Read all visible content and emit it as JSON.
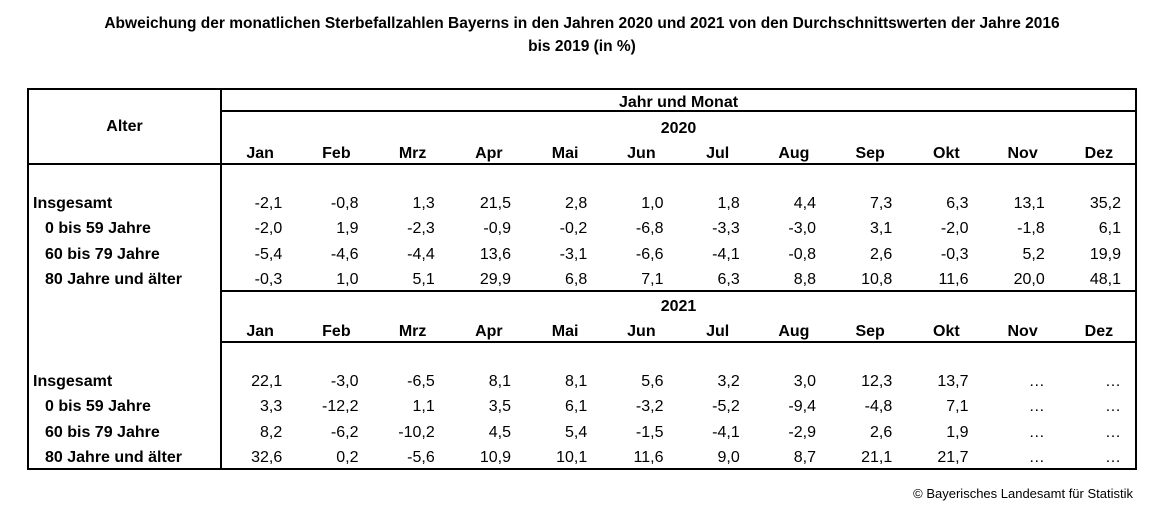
{
  "title": {
    "line1": "Abweichung der monatlichen Sterbefallzahlen Bayerns in den Jahren 2020 und 2021 von den Durchschnittswerten der Jahre 2016",
    "line2": "bis 2019 (in %)"
  },
  "table": {
    "alter_header": "Alter",
    "group_header": "Jahr und Monat",
    "months": [
      "Jan",
      "Feb",
      "Mrz",
      "Apr",
      "Mai",
      "Jun",
      "Jul",
      "Aug",
      "Sep",
      "Okt",
      "Nov",
      "Dez"
    ],
    "sections": [
      {
        "year": "2020",
        "rows": [
          {
            "label": "Insgesamt",
            "values": [
              "-2,1",
              "-0,8",
              "1,3",
              "21,5",
              "2,8",
              "1,0",
              "1,8",
              "4,4",
              "7,3",
              "6,3",
              "13,1",
              "35,2"
            ]
          },
          {
            "label": "0 bis 59 Jahre",
            "values": [
              "-2,0",
              "1,9",
              "-2,3",
              "-0,9",
              "-0,2",
              "-6,8",
              "-3,3",
              "-3,0",
              "3,1",
              "-2,0",
              "-1,8",
              "6,1"
            ]
          },
          {
            "label": "60 bis 79 Jahre",
            "values": [
              "-5,4",
              "-4,6",
              "-4,4",
              "13,6",
              "-3,1",
              "-6,6",
              "-4,1",
              "-0,8",
              "2,6",
              "-0,3",
              "5,2",
              "19,9"
            ]
          },
          {
            "label": "80 Jahre und älter",
            "values": [
              "-0,3",
              "1,0",
              "5,1",
              "29,9",
              "6,8",
              "7,1",
              "6,3",
              "8,8",
              "10,8",
              "11,6",
              "20,0",
              "48,1"
            ]
          }
        ]
      },
      {
        "year": "2021",
        "rows": [
          {
            "label": "Insgesamt",
            "values": [
              "22,1",
              "-3,0",
              "-6,5",
              "8,1",
              "8,1",
              "5,6",
              "3,2",
              "3,0",
              "12,3",
              "13,7",
              "…",
              "…"
            ]
          },
          {
            "label": "0 bis 59 Jahre",
            "values": [
              "3,3",
              "-12,2",
              "1,1",
              "3,5",
              "6,1",
              "-3,2",
              "-5,2",
              "-9,4",
              "-4,8",
              "7,1",
              "…",
              "…"
            ]
          },
          {
            "label": "60 bis 79 Jahre",
            "values": [
              "8,2",
              "-6,2",
              "-10,2",
              "4,5",
              "5,4",
              "-1,5",
              "-4,1",
              "-2,9",
              "2,6",
              "1,9",
              "…",
              "…"
            ]
          },
          {
            "label": "80 Jahre und älter",
            "values": [
              "32,6",
              "0,2",
              "-5,6",
              "10,9",
              "10,1",
              "11,6",
              "9,0",
              "8,7",
              "21,1",
              "21,7",
              "…",
              "…"
            ]
          }
        ]
      }
    ]
  },
  "footer": "© Bayerisches Landesamt für Statistik"
}
